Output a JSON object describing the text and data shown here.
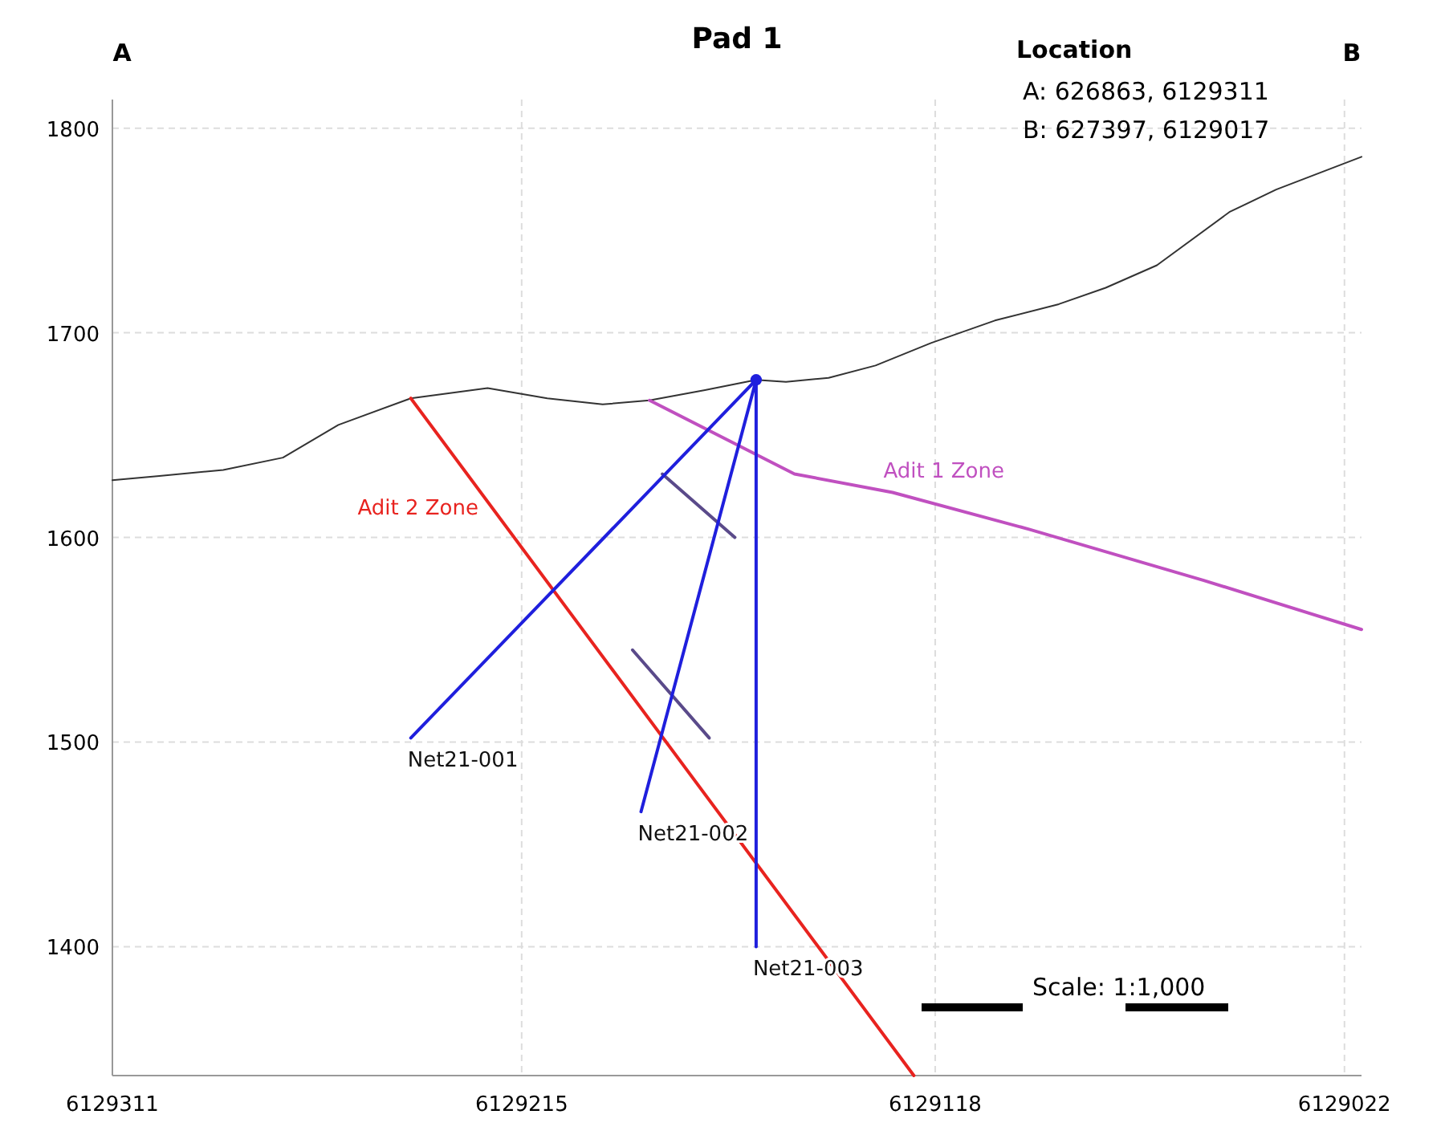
{
  "chart_data": {
    "type": "line",
    "title": "Pad 1",
    "xlim": [
      6129311,
      6129018
    ],
    "xticks": [
      6129311,
      6129215,
      6129118,
      6129022
    ],
    "ylim": [
      1337,
      1814
    ],
    "yticks": [
      1400,
      1500,
      1600,
      1700,
      1800
    ],
    "grid": true,
    "marker": "none",
    "line_style": "solid",
    "series": [
      {
        "color": "#333333",
        "x": [
          6129311,
          6129300,
          6129285,
          6129271,
          6129258,
          6129241,
          6129223,
          6129209,
          6129196,
          6129185,
          6129172,
          6129160,
          6129153,
          6129143,
          6129132,
          6129119,
          6129104,
          6129089,
          6129078,
          6129066,
          6129049,
          6129038,
          6129018
        ],
        "values": [
          1628,
          1630,
          1633,
          1639,
          1655,
          1668,
          1673,
          1668,
          1665,
          1667,
          1672,
          1677,
          1676,
          1678,
          1684,
          1695,
          1706,
          1714,
          1722,
          1733,
          1759,
          1770,
          1786
        ]
      },
      {
        "name": "Adit 2 Zone",
        "color": "#e8231f",
        "x": [
          6129241,
          6129123
        ],
        "values": [
          1668,
          1337
        ]
      },
      {
        "name": "Adit 1 Zone",
        "color": "#c050c0",
        "x": [
          6129185,
          6129151,
          6129128,
          6129096,
          6129055,
          6129018
        ],
        "values": [
          1667,
          1631,
          1622,
          1604,
          1579,
          1555
        ]
      },
      {
        "color": "#5a4a8a",
        "x": [
          6129182,
          6129165
        ],
        "values": [
          1631,
          1600
        ]
      },
      {
        "color": "#5a4a8a",
        "x": [
          6129189,
          6129171
        ],
        "values": [
          1545,
          1502
        ]
      },
      {
        "name": "Net21-001",
        "color": "#1f1fdd",
        "x": [
          6129160,
          6129241
        ],
        "values": [
          1677,
          1502
        ]
      },
      {
        "name": "Net21-002",
        "color": "#1f1fdd",
        "x": [
          6129160,
          6129187
        ],
        "values": [
          1677,
          1466
        ]
      },
      {
        "name": "Net21-003",
        "color": "#1f1fdd",
        "x": [
          6129160,
          6129160
        ],
        "values": [
          1677,
          1400
        ]
      },
      {
        "type": "scatter",
        "marker": "circle",
        "color": "#1f1fdd",
        "x": [
          6129160
        ],
        "values": [
          1677
        ]
      }
    ],
    "annotations": [
      "A",
      "B",
      "Location",
      "A:  626863, 6129311",
      "B:  627397, 6129017",
      "Scale: 1:1,000"
    ]
  }
}
